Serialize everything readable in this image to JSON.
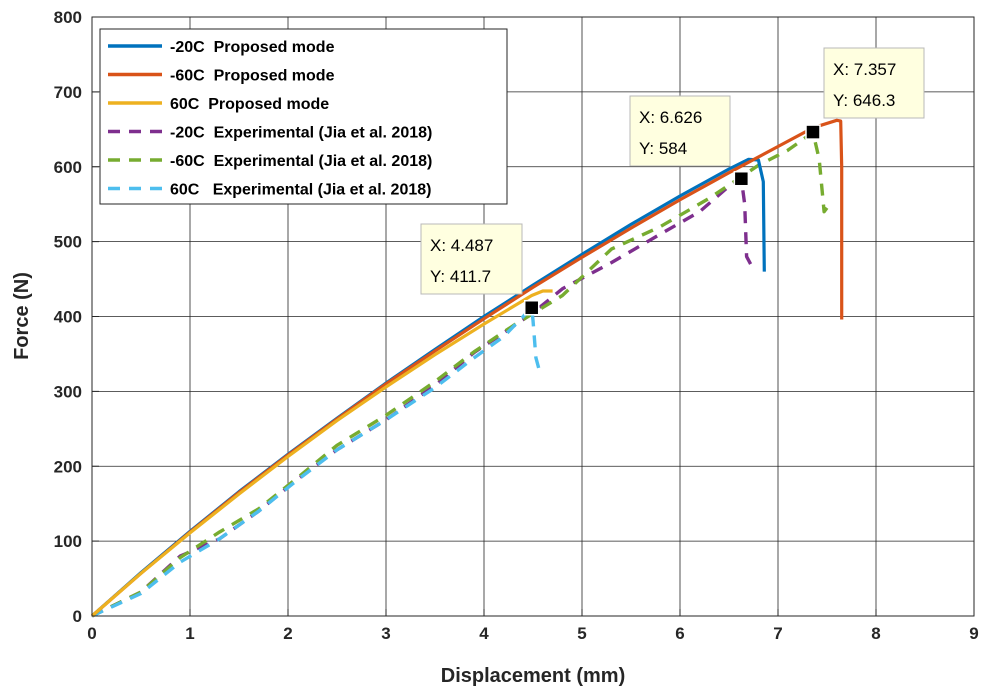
{
  "chart_data": {
    "type": "line",
    "title": "",
    "xlabel": "Displacement (mm)",
    "ylabel": "Force (N)",
    "xlim": [
      0,
      9
    ],
    "ylim": [
      0,
      800
    ],
    "xticks": [
      0,
      1,
      2,
      3,
      4,
      5,
      6,
      7,
      8,
      9
    ],
    "yticks": [
      0,
      100,
      200,
      300,
      400,
      500,
      600,
      700,
      800
    ],
    "grid": true,
    "legend_position": "top-left",
    "series": [
      {
        "name": "-20C  Proposed mode",
        "style": "solid",
        "color": "#0072BD",
        "points": [
          [
            0,
            0
          ],
          [
            0.5,
            58
          ],
          [
            1,
            113
          ],
          [
            1.5,
            166
          ],
          [
            2,
            216
          ],
          [
            2.5,
            264
          ],
          [
            3,
            311
          ],
          [
            3.5,
            356
          ],
          [
            4,
            400
          ],
          [
            4.5,
            442
          ],
          [
            5,
            483
          ],
          [
            5.5,
            523
          ],
          [
            6,
            561
          ],
          [
            6.5,
            597
          ],
          [
            6.7,
            610
          ],
          [
            6.8,
            609
          ],
          [
            6.85,
            580
          ],
          [
            6.86,
            460
          ]
        ]
      },
      {
        "name": "-60C  Proposed mode",
        "style": "solid",
        "color": "#D95319",
        "points": [
          [
            0,
            0
          ],
          [
            0.5,
            57
          ],
          [
            1,
            112
          ],
          [
            1.5,
            165
          ],
          [
            2,
            215
          ],
          [
            2.5,
            263
          ],
          [
            3,
            310
          ],
          [
            3.5,
            354
          ],
          [
            4,
            397
          ],
          [
            4.5,
            439
          ],
          [
            5,
            479
          ],
          [
            5.5,
            518
          ],
          [
            6,
            556
          ],
          [
            6.5,
            592
          ],
          [
            7,
            627
          ],
          [
            7.357,
            652
          ],
          [
            7.6,
            662
          ],
          [
            7.64,
            661
          ],
          [
            7.65,
            600
          ],
          [
            7.65,
            396
          ]
        ]
      },
      {
        "name": "60C  Proposed mode",
        "style": "solid",
        "color": "#EDB120",
        "points": [
          [
            0,
            0
          ],
          [
            0.5,
            57
          ],
          [
            1,
            111
          ],
          [
            1.5,
            163
          ],
          [
            2,
            213
          ],
          [
            2.5,
            261
          ],
          [
            3,
            306
          ],
          [
            3.5,
            349
          ],
          [
            4,
            390
          ],
          [
            4.487,
            428
          ],
          [
            4.6,
            434
          ],
          [
            4.7,
            434
          ]
        ]
      },
      {
        "name": "-20C  Experimental (Jia et al. 2018)",
        "style": "dashed",
        "color": "#7E2F8E",
        "points": [
          [
            0,
            0
          ],
          [
            0.5,
            32
          ],
          [
            0.9,
            80
          ],
          [
            1.3,
            103
          ],
          [
            1.7,
            140
          ],
          [
            2.1,
            183
          ],
          [
            2.5,
            222
          ],
          [
            3,
            262
          ],
          [
            3.5,
            308
          ],
          [
            3.9,
            352
          ],
          [
            4.2,
            378
          ],
          [
            4.5,
            405
          ],
          [
            4.8,
            437
          ],
          [
            5.3,
            472
          ],
          [
            5.8,
            510
          ],
          [
            6.2,
            540
          ],
          [
            6.5,
            574
          ],
          [
            6.626,
            584
          ],
          [
            6.66,
            550
          ],
          [
            6.68,
            480
          ],
          [
            6.72,
            470
          ]
        ]
      },
      {
        "name": "-60C  Experimental (Jia et al. 2018)",
        "style": "dashed",
        "color": "#77AC30",
        "points": [
          [
            0,
            0
          ],
          [
            0.5,
            32
          ],
          [
            0.9,
            78
          ],
          [
            1.3,
            112
          ],
          [
            1.7,
            143
          ],
          [
            2.1,
            185
          ],
          [
            2.5,
            228
          ],
          [
            3,
            268
          ],
          [
            3.5,
            313
          ],
          [
            3.9,
            353
          ],
          [
            4.3,
            388
          ],
          [
            4.8,
            428
          ],
          [
            5.3,
            490
          ],
          [
            5.8,
            520
          ],
          [
            6.3,
            558
          ],
          [
            6.8,
            602
          ],
          [
            7.1,
            622
          ],
          [
            7.357,
            646
          ],
          [
            7.42,
            610
          ],
          [
            7.47,
            540
          ],
          [
            7.5,
            545
          ]
        ]
      },
      {
        "name": "60C   Experimental (Jia et al. 2018)",
        "style": "dashed",
        "color": "#4DBEEE",
        "points": [
          [
            0,
            0
          ],
          [
            0.5,
            30
          ],
          [
            0.9,
            72
          ],
          [
            1.3,
            103
          ],
          [
            1.7,
            140
          ],
          [
            2.1,
            182
          ],
          [
            2.5,
            222
          ],
          [
            3,
            262
          ],
          [
            3.5,
            305
          ],
          [
            3.9,
            345
          ],
          [
            4.2,
            373
          ],
          [
            4.487,
            411.7
          ],
          [
            4.5,
            395
          ],
          [
            4.53,
            345
          ],
          [
            4.56,
            330
          ]
        ]
      }
    ],
    "annotations": [
      {
        "x": 4.487,
        "y": 411.7,
        "label_x": "X: 4.487",
        "label_y": "Y: 411.7"
      },
      {
        "x": 6.626,
        "y": 584,
        "label_x": "X: 6.626",
        "label_y": "Y: 584"
      },
      {
        "x": 7.357,
        "y": 646.3,
        "label_x": "X: 7.357",
        "label_y": "Y: 646.3"
      }
    ]
  }
}
